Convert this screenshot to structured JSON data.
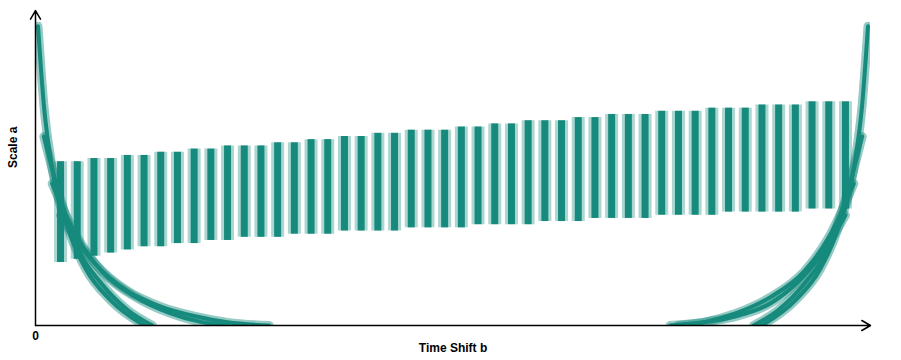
{
  "chart_data": {
    "type": "scalogram",
    "x_label": "Time Shift b",
    "y_label": "Scale a",
    "xlim": [
      0,
      100
    ],
    "ylim": [
      0,
      100
    ],
    "xticks": [
      0
    ],
    "tick_labels": "x",
    "color": "#168a7c",
    "stripes": {
      "x": [
        3,
        5,
        7,
        9,
        11,
        13,
        15,
        17,
        19,
        21,
        23,
        25,
        27,
        29,
        31,
        33,
        35,
        37,
        39,
        41,
        43,
        45,
        47,
        49,
        51,
        53,
        55,
        57,
        59,
        61,
        63,
        65,
        67,
        69,
        71,
        73,
        75,
        77,
        79,
        81,
        83,
        85,
        87,
        89,
        91,
        93,
        95,
        97
      ],
      "y1": [
        20,
        21,
        22,
        23,
        24,
        25,
        25,
        26,
        26,
        27,
        27,
        28,
        28,
        28,
        29,
        29,
        29,
        30,
        30,
        30,
        30,
        31,
        31,
        31,
        31,
        32,
        32,
        32,
        32,
        33,
        33,
        33,
        34,
        34,
        34,
        34,
        35,
        35,
        35,
        35,
        36,
        36,
        36,
        36,
        36,
        37,
        37,
        37
      ],
      "y2": [
        52,
        52,
        53,
        53,
        54,
        54,
        55,
        55,
        56,
        56,
        57,
        57,
        57,
        58,
        58,
        59,
        59,
        60,
        60,
        61,
        61,
        62,
        62,
        62,
        63,
        63,
        64,
        64,
        65,
        65,
        65,
        66,
        66,
        67,
        67,
        67,
        68,
        68,
        68,
        69,
        69,
        69,
        70,
        70,
        70,
        71,
        71,
        71
      ]
    },
    "edge_curves": [
      {
        "x": [
          0.3,
          1,
          2,
          4,
          6,
          9,
          13
        ],
        "y": [
          95,
          70,
          50,
          30,
          18,
          8,
          0
        ]
      },
      {
        "x": [
          1,
          3,
          5,
          8,
          11,
          14
        ],
        "y": [
          60,
          40,
          25,
          13,
          5,
          0
        ]
      },
      {
        "x": [
          2,
          5,
          8,
          12,
          16,
          20,
          23
        ],
        "y": [
          45,
          28,
          17,
          9,
          4,
          1,
          0
        ]
      },
      {
        "x": [
          3,
          7,
          11,
          15,
          19,
          23,
          28
        ],
        "y": [
          35,
          20,
          11,
          6,
          3,
          1,
          0
        ]
      },
      {
        "x": [
          99.7,
          99,
          98,
          96,
          94,
          91,
          87
        ],
        "y": [
          95,
          70,
          50,
          30,
          18,
          8,
          0
        ]
      },
      {
        "x": [
          99,
          97,
          95,
          92,
          89,
          86
        ],
        "y": [
          60,
          40,
          25,
          13,
          5,
          0
        ]
      },
      {
        "x": [
          98,
          95,
          92,
          88,
          84,
          80,
          77
        ],
        "y": [
          45,
          28,
          17,
          9,
          4,
          1,
          0
        ]
      },
      {
        "x": [
          97,
          94,
          91,
          88,
          84,
          80,
          76
        ],
        "y": [
          35,
          22,
          13,
          7,
          3,
          1,
          0
        ]
      }
    ]
  }
}
